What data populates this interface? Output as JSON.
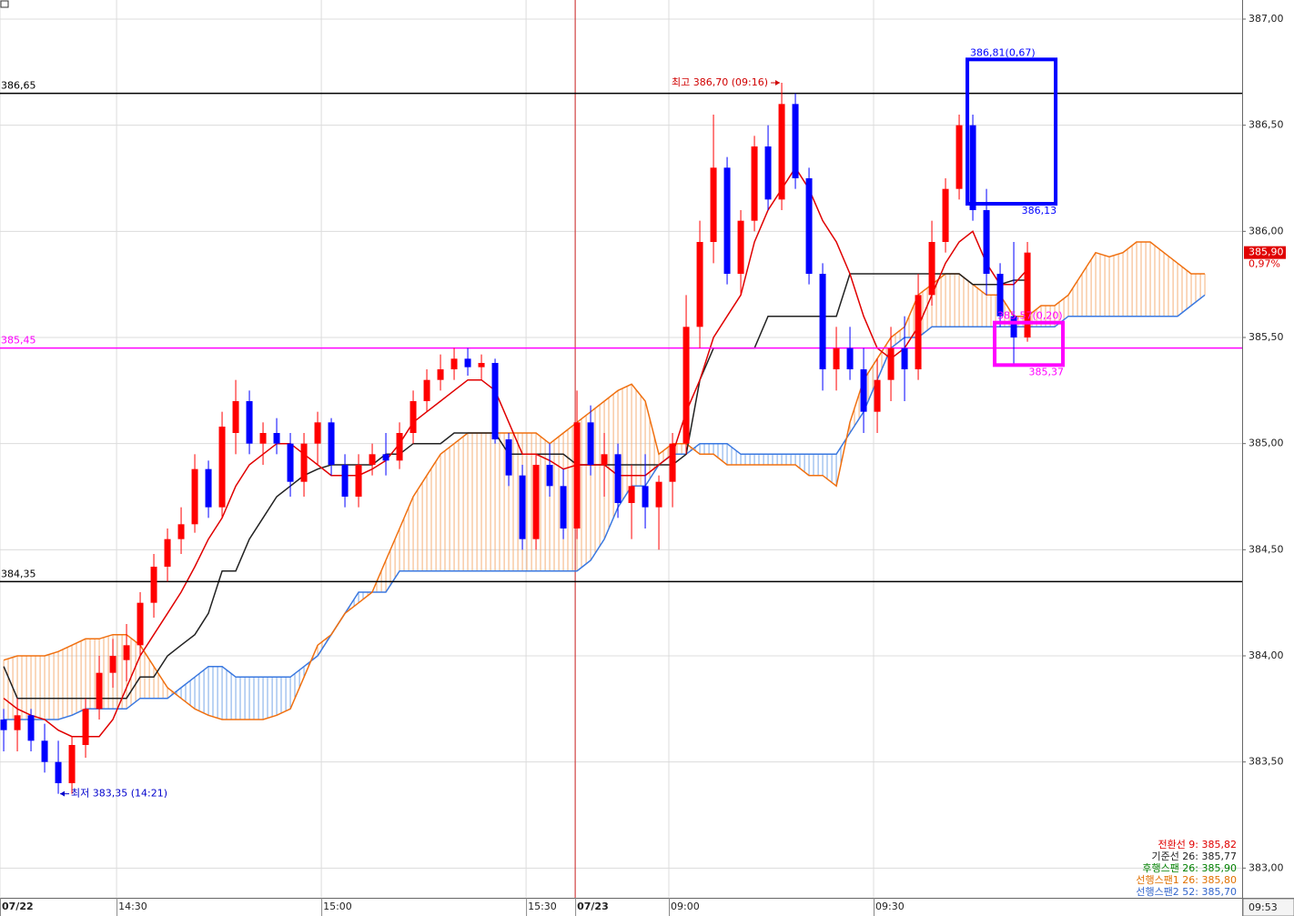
{
  "chart_data": {
    "type": "candlestick",
    "xlim": [
      -0.27,
      90.73
    ],
    "xticks": [
      {
        "value": -0.27,
        "label": "07/22"
      },
      {
        "value": 8.27,
        "label": "14:30"
      },
      {
        "value": 23.27,
        "label": "15:00"
      },
      {
        "value": 38.27,
        "label": "15:30"
      },
      {
        "value": 41.87,
        "label": "07/23"
      },
      {
        "value": 48.73,
        "label": "09:00"
      },
      {
        "value": 63.73,
        "label": "09:30"
      }
    ],
    "ylim": [
      382.86,
      387.09
    ],
    "yticks": [
      {
        "value": 387.0,
        "label": "387,00"
      },
      {
        "value": 386.5,
        "label": "386,50"
      },
      {
        "value": 386.0,
        "label": "386,00"
      },
      {
        "value": 385.5,
        "label": "385,50"
      },
      {
        "value": 385.0,
        "label": "385,00"
      },
      {
        "value": 384.5,
        "label": "384,50"
      },
      {
        "value": 384.0,
        "label": "384,00"
      },
      {
        "value": 383.5,
        "label": "383,50"
      },
      {
        "value": 383.0,
        "label": "383,00"
      }
    ],
    "grid": true,
    "day_break": 41.87,
    "current_time": "09:53",
    "candles": {
      "up_color": "#ff0000",
      "down_color": "#0000ff",
      "open": [
        383.7,
        383.65,
        383.72,
        383.6,
        383.5,
        383.4,
        383.58,
        383.75,
        383.92,
        383.98,
        384.05,
        384.25,
        384.42,
        384.55,
        384.62,
        384.88,
        384.7,
        385.05,
        385.2,
        385.0,
        385.05,
        385.0,
        384.82,
        385.0,
        385.1,
        384.9,
        384.75,
        384.9,
        384.95,
        384.92,
        385.05,
        385.2,
        385.3,
        385.35,
        385.4,
        385.36,
        385.38,
        385.02,
        384.85,
        384.55,
        384.9,
        384.8,
        384.6,
        385.1,
        384.9,
        384.95,
        384.72,
        384.8,
        384.7,
        384.82,
        385.0,
        385.55,
        385.95,
        386.3,
        385.8,
        386.05,
        386.4,
        386.15,
        386.6,
        386.25,
        385.8,
        385.35,
        385.45,
        385.35,
        385.15,
        385.3,
        385.45,
        385.35,
        385.7,
        385.95,
        386.2,
        386.5,
        386.1,
        385.8,
        385.6,
        385.5
      ],
      "high": [
        383.75,
        383.8,
        383.75,
        383.68,
        383.6,
        383.62,
        383.8,
        384.0,
        384.08,
        384.15,
        384.3,
        384.48,
        384.6,
        384.7,
        384.95,
        384.92,
        385.15,
        385.3,
        385.25,
        385.1,
        385.12,
        385.05,
        385.05,
        385.15,
        385.12,
        384.95,
        384.95,
        385.0,
        385.05,
        385.1,
        385.25,
        385.35,
        385.42,
        385.45,
        385.45,
        385.42,
        385.4,
        385.05,
        384.9,
        384.95,
        385.0,
        384.88,
        385.25,
        385.18,
        385.05,
        385.0,
        384.9,
        384.95,
        384.85,
        385.05,
        385.7,
        386.05,
        386.55,
        386.35,
        386.1,
        386.45,
        386.5,
        386.7,
        386.65,
        386.3,
        385.85,
        385.55,
        385.55,
        385.45,
        385.4,
        385.55,
        385.6,
        385.8,
        386.05,
        386.25,
        386.55,
        386.55,
        386.2,
        385.85,
        385.95,
        385.95
      ],
      "low": [
        383.55,
        383.55,
        383.55,
        383.45,
        383.35,
        383.35,
        383.52,
        383.7,
        383.85,
        383.88,
        384.0,
        384.18,
        384.35,
        384.48,
        384.58,
        384.65,
        384.65,
        384.95,
        384.95,
        384.9,
        384.95,
        384.75,
        384.75,
        384.9,
        384.85,
        384.7,
        384.7,
        384.85,
        384.85,
        384.88,
        385.0,
        385.15,
        385.25,
        385.3,
        385.32,
        385.3,
        385.0,
        384.8,
        384.5,
        384.5,
        384.75,
        384.55,
        384.55,
        384.85,
        384.75,
        384.65,
        384.55,
        384.6,
        384.5,
        384.7,
        384.95,
        385.45,
        385.85,
        385.75,
        385.7,
        386.0,
        386.1,
        386.1,
        386.2,
        385.75,
        385.25,
        385.25,
        385.3,
        385.05,
        385.05,
        385.2,
        385.2,
        385.3,
        385.65,
        385.9,
        386.15,
        386.05,
        385.7,
        385.55,
        385.37,
        385.48
      ],
      "close": [
        383.65,
        383.72,
        383.6,
        383.5,
        383.4,
        383.58,
        383.75,
        383.92,
        384.0,
        384.05,
        384.25,
        384.42,
        384.55,
        384.62,
        384.88,
        384.7,
        385.08,
        385.2,
        385.0,
        385.05,
        385.0,
        384.82,
        385.0,
        385.1,
        384.9,
        384.75,
        384.9,
        384.95,
        384.92,
        385.05,
        385.2,
        385.3,
        385.35,
        385.4,
        385.36,
        385.38,
        385.02,
        384.85,
        384.55,
        384.9,
        384.8,
        384.6,
        385.1,
        384.9,
        384.95,
        384.72,
        384.8,
        384.7,
        384.82,
        385.0,
        385.55,
        385.95,
        386.3,
        385.8,
        386.05,
        386.4,
        386.15,
        386.6,
        386.25,
        385.8,
        385.35,
        385.45,
        385.35,
        385.15,
        385.3,
        385.45,
        385.35,
        385.7,
        385.95,
        386.2,
        386.5,
        386.1,
        385.8,
        385.6,
        385.5,
        385.9
      ]
    },
    "tenkan": {
      "color": "#e00000",
      "values": [
        383.8,
        383.75,
        383.72,
        383.7,
        383.65,
        383.62,
        383.62,
        383.62,
        383.7,
        383.85,
        384.0,
        384.1,
        384.2,
        384.3,
        384.42,
        384.55,
        384.65,
        384.8,
        384.9,
        384.95,
        385.0,
        385.0,
        384.95,
        384.9,
        384.85,
        384.85,
        384.85,
        384.88,
        384.92,
        385.0,
        385.1,
        385.15,
        385.2,
        385.25,
        385.3,
        385.3,
        385.25,
        385.1,
        384.95,
        384.95,
        384.92,
        384.88,
        384.9,
        384.9,
        384.9,
        384.85,
        384.85,
        384.85,
        384.9,
        384.95,
        385.15,
        385.3,
        385.5,
        385.6,
        385.7,
        385.95,
        386.1,
        386.2,
        386.3,
        386.2,
        386.05,
        385.95,
        385.8,
        385.6,
        385.45,
        385.4,
        385.45,
        385.55,
        385.7,
        385.85,
        385.95,
        386.0,
        385.85,
        385.75,
        385.75,
        385.82,
        null,
        null,
        null,
        null,
        null,
        null,
        null,
        null,
        null,
        null,
        null,
        null,
        null
      ]
    },
    "kijun": {
      "color": "#222222",
      "values": [
        383.95,
        383.8,
        383.8,
        383.8,
        383.8,
        383.8,
        383.8,
        383.8,
        383.8,
        383.8,
        383.9,
        383.9,
        384.0,
        384.05,
        384.1,
        384.2,
        384.4,
        384.4,
        384.55,
        384.65,
        384.75,
        384.8,
        384.85,
        384.88,
        384.9,
        384.9,
        384.9,
        384.9,
        384.95,
        384.95,
        385.0,
        385.0,
        385.0,
        385.05,
        385.05,
        385.05,
        385.05,
        384.95,
        384.95,
        384.95,
        384.95,
        384.95,
        384.9,
        384.9,
        384.9,
        384.9,
        384.9,
        384.9,
        384.9,
        384.9,
        384.95,
        385.3,
        385.45,
        385.45,
        385.45,
        385.45,
        385.6,
        385.6,
        385.6,
        385.6,
        385.6,
        385.6,
        385.8,
        385.8,
        385.8,
        385.8,
        385.8,
        385.8,
        385.8,
        385.8,
        385.8,
        385.75,
        385.75,
        385.75,
        385.77,
        385.77,
        null,
        null,
        null,
        null,
        null,
        null,
        null,
        null,
        null,
        null,
        null,
        null,
        null
      ]
    },
    "span1": {
      "color": "#f07010",
      "fill": "#f5b07a",
      "values": [
        383.98,
        384.0,
        384.0,
        384.0,
        384.02,
        384.05,
        384.08,
        384.08,
        384.1,
        384.1,
        384.05,
        383.95,
        383.85,
        383.8,
        383.75,
        383.72,
        383.7,
        383.7,
        383.7,
        383.7,
        383.72,
        383.75,
        383.9,
        384.05,
        384.1,
        384.2,
        384.25,
        384.3,
        384.45,
        384.6,
        384.75,
        384.85,
        384.95,
        385.0,
        385.05,
        385.05,
        385.05,
        385.05,
        385.05,
        385.05,
        385.0,
        385.05,
        385.1,
        385.15,
        385.2,
        385.25,
        385.28,
        385.2,
        384.95,
        385.0,
        385.0,
        384.95,
        384.95,
        384.9,
        384.9,
        384.9,
        384.9,
        384.9,
        384.9,
        384.85,
        384.85,
        384.8,
        385.1,
        385.3,
        385.4,
        385.5,
        385.55,
        385.7,
        385.75,
        385.8,
        385.8,
        385.75,
        385.7,
        385.7,
        385.6,
        385.6,
        385.65,
        385.65,
        385.7,
        385.8,
        385.9,
        385.88,
        385.9,
        385.95,
        385.95,
        385.9,
        385.85,
        385.8,
        385.8
      ]
    },
    "span2": {
      "color": "#3a78e0",
      "fill": "#7aa8e8",
      "values": [
        383.7,
        383.7,
        383.7,
        383.7,
        383.7,
        383.72,
        383.75,
        383.75,
        383.75,
        383.75,
        383.8,
        383.8,
        383.8,
        383.85,
        383.9,
        383.95,
        383.95,
        383.9,
        383.9,
        383.9,
        383.9,
        383.9,
        383.95,
        384.0,
        384.1,
        384.2,
        384.3,
        384.3,
        384.3,
        384.4,
        384.4,
        384.4,
        384.4,
        384.4,
        384.4,
        384.4,
        384.4,
        384.4,
        384.4,
        384.4,
        384.4,
        384.4,
        384.4,
        384.45,
        384.55,
        384.7,
        384.8,
        384.8,
        384.9,
        384.95,
        384.95,
        385.0,
        385.0,
        385.0,
        384.95,
        384.95,
        384.95,
        384.95,
        384.95,
        384.95,
        384.95,
        384.95,
        385.05,
        385.15,
        385.3,
        385.45,
        385.5,
        385.5,
        385.55,
        385.55,
        385.55,
        385.55,
        385.55,
        385.55,
        385.55,
        385.55,
        385.55,
        385.55,
        385.6,
        385.6,
        385.6,
        385.6,
        385.6,
        385.6,
        385.6,
        385.6,
        385.6,
        385.65,
        385.7
      ]
    },
    "hlines": [
      {
        "value": 386.65,
        "label": "386,65",
        "color": "#000000"
      },
      {
        "value": 385.45,
        "label": "385,45",
        "color": "#ff00ff"
      },
      {
        "value": 384.35,
        "label": "384,35",
        "color": "#000000"
      }
    ],
    "markers": [
      {
        "text": "최고 386,70 (09:16)",
        "value": 386.7,
        "x": 57,
        "side": "left",
        "color": "#d00000"
      },
      {
        "text": "최저 383,35 (14:21)",
        "value": 383.35,
        "x": 4,
        "side": "right",
        "color": "#0000cc"
      }
    ],
    "boxes": [
      {
        "color": "#0000ff",
        "top": 386.81,
        "bottom": 386.13,
        "xrange": [
          70.6,
          77.07
        ],
        "top_label": "386,81(0,67)",
        "bottom_label": "386,13"
      },
      {
        "color": "#ff00ff",
        "top": 385.57,
        "bottom": 385.37,
        "xrange": [
          72.6,
          77.6
        ],
        "top_label": "385,57(0,20)",
        "bottom_label": "385,37"
      }
    ],
    "last_price": {
      "value": 385.9,
      "label": "385,90",
      "change_label": "0,97%",
      "color": "#e00000"
    },
    "legend_corner": "bottom-right",
    "legend": [
      {
        "label": "전환선 9: 385,82",
        "color": "#e00000"
      },
      {
        "label": "기준선 26: 385,77",
        "color": "#222222"
      },
      {
        "label": "후행스팬 26: 385,90",
        "color": "#008000"
      },
      {
        "label": "선행스팬1 26: 385,80",
        "color": "#e07000"
      },
      {
        "label": "선행스팬2 52: 385,70",
        "color": "#3366cc"
      }
    ]
  }
}
